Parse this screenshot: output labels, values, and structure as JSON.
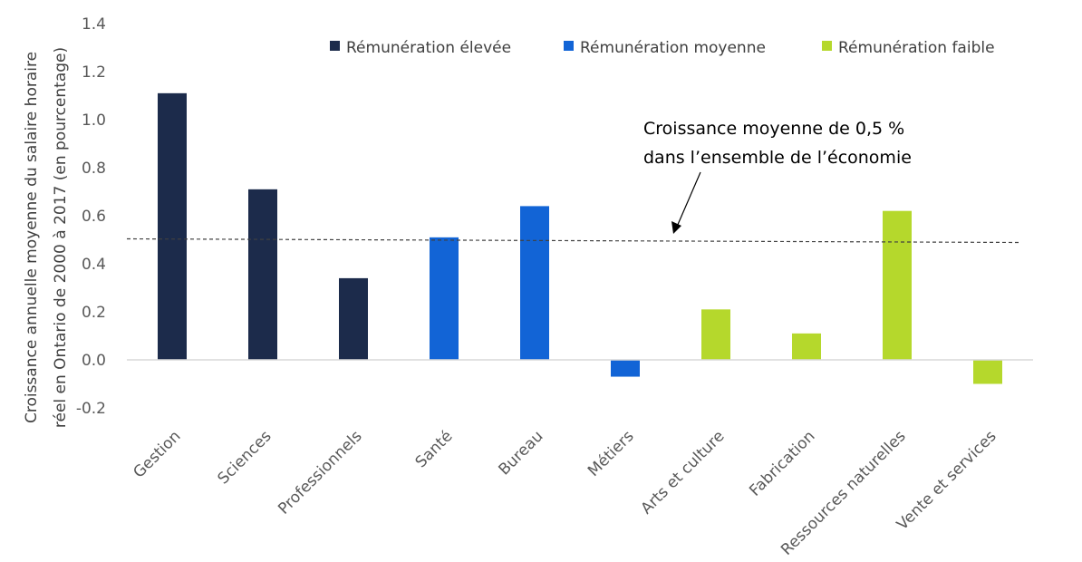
{
  "chart_data": {
    "type": "bar",
    "ylabel_line1": "Croissance annuelle moyenne du salaire horaire",
    "ylabel_line2": "réel en Ontario de 2000 à 2017 (en pourcentage)",
    "ylim": [
      -0.2,
      1.4
    ],
    "yticks": [
      -0.2,
      0.0,
      0.2,
      0.4,
      0.6,
      0.8,
      1.0,
      1.2,
      1.4
    ],
    "ytick_labels": [
      "-0.2",
      "0.0",
      "0.2",
      "0.4",
      "0.6",
      "0.8",
      "1.0",
      "1.2",
      "1.4"
    ],
    "grid": false,
    "legend_position": "top-right",
    "categories": [
      "Gestion",
      "Sciences",
      "Professionnels",
      "Santé",
      "Bureau",
      "Métiers",
      "Arts et culture",
      "Fabrication",
      "Ressources naturelles",
      "Vente et services"
    ],
    "values": [
      1.11,
      0.71,
      0.34,
      0.51,
      0.64,
      -0.07,
      0.21,
      0.11,
      0.62,
      -0.1
    ],
    "groups": [
      "high",
      "high",
      "high",
      "medium",
      "medium",
      "medium",
      "low",
      "low",
      "low",
      "low"
    ],
    "legend": [
      {
        "key": "high",
        "label": "Rémunération élevée",
        "color": "#1c2b4b"
      },
      {
        "key": "medium",
        "label": "Rémunération moyenne",
        "color": "#1264d6"
      },
      {
        "key": "low",
        "label": "Rémunération faible",
        "color": "#b5d82c"
      }
    ],
    "reference_line": {
      "value": 0.5,
      "style": "dashed"
    },
    "annotation": {
      "line1": "Croissance moyenne de 0,5 %",
      "line2": "dans l’ensemble de l’économie"
    }
  }
}
